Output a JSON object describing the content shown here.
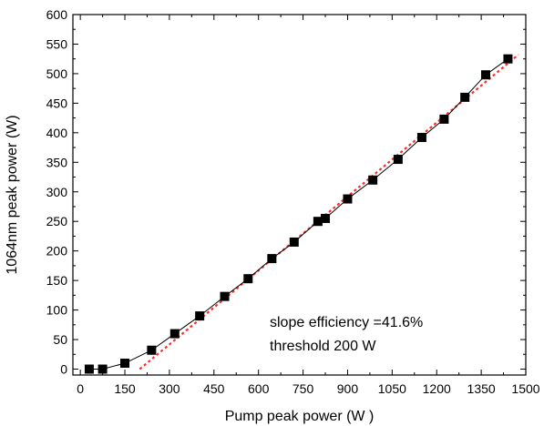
{
  "chart_data": {
    "type": "scatter",
    "xlabel": "Pump peak power (W )",
    "ylabel": "1064nm peak power (W)",
    "xlim": [
      -25,
      1500
    ],
    "ylim": [
      -10,
      600
    ],
    "xticks": [
      0,
      150,
      300,
      450,
      600,
      750,
      900,
      1050,
      1200,
      1350,
      1500
    ],
    "yticks": [
      0,
      50,
      100,
      150,
      200,
      250,
      300,
      350,
      400,
      450,
      500,
      550,
      600
    ],
    "grid": false,
    "series": [
      {
        "style": "squares-connected-line",
        "color": "#000000",
        "points": [
          [
            30,
            0
          ],
          [
            75,
            0
          ],
          [
            150,
            10
          ],
          [
            240,
            32
          ],
          [
            318,
            60
          ],
          [
            402,
            90
          ],
          [
            486,
            123
          ],
          [
            565,
            153
          ],
          [
            645,
            187
          ],
          [
            720,
            215
          ],
          [
            800,
            250
          ],
          [
            825,
            255
          ],
          [
            900,
            288
          ],
          [
            985,
            320
          ],
          [
            1070,
            355
          ],
          [
            1150,
            392
          ],
          [
            1225,
            423
          ],
          [
            1295,
            460
          ],
          [
            1365,
            498
          ],
          [
            1440,
            525
          ]
        ]
      },
      {
        "style": "dotted-fit-line",
        "color": "#ff2a2a",
        "points": [
          [
            200,
            0
          ],
          [
            1475,
            532
          ]
        ]
      }
    ],
    "annotations": [
      "slope efficiency =41.6%",
      "threshold 200 W"
    ]
  }
}
